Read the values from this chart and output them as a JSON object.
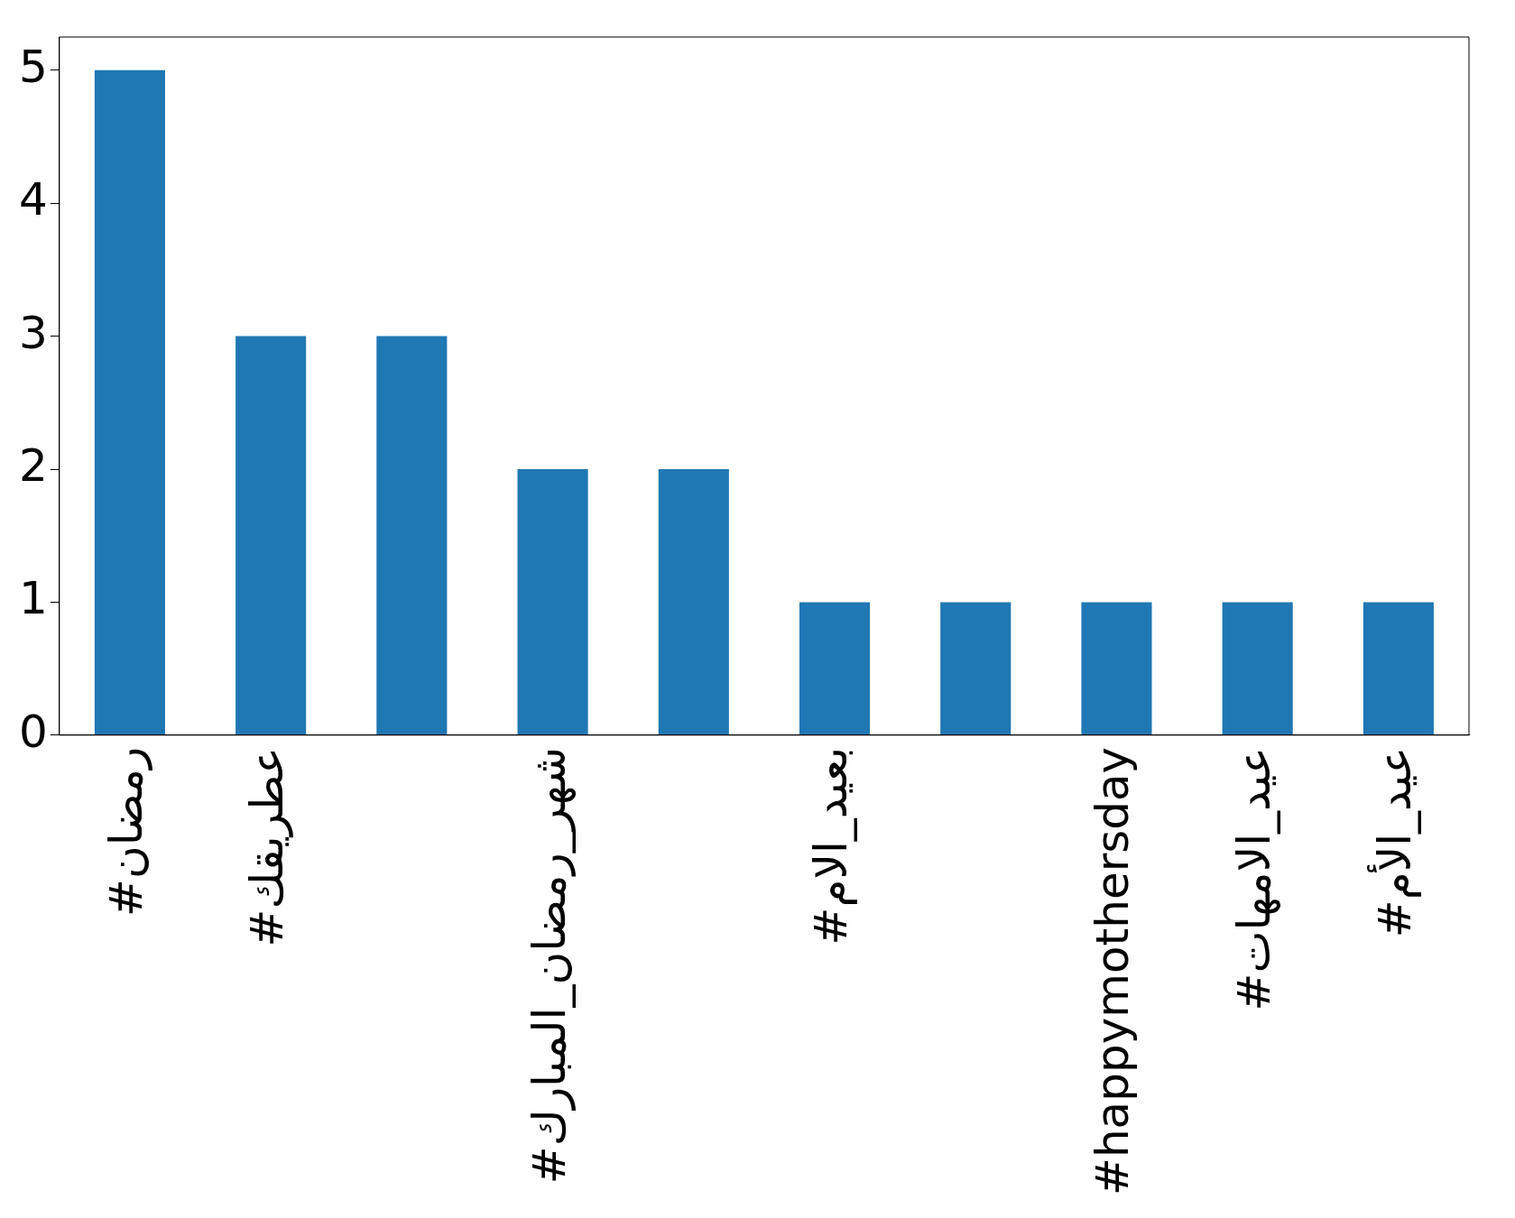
{
  "chart_data": {
    "type": "bar",
    "categories": [
      "#رمضان",
      "#عطريقك",
      null,
      "#شهر_رمضان_المبارك",
      null,
      "#بعيد_الام",
      null,
      "#happymothersday",
      "#عيد_الامهات",
      "#عيد_الأم"
    ],
    "values": [
      5,
      3,
      3,
      2,
      2,
      1,
      1,
      1,
      1,
      1
    ],
    "color": "#1f77b4",
    "ylim": [
      0,
      5.25
    ],
    "yticks": [
      0,
      1,
      2,
      3,
      4,
      5
    ],
    "grid": false,
    "legend": false
  }
}
